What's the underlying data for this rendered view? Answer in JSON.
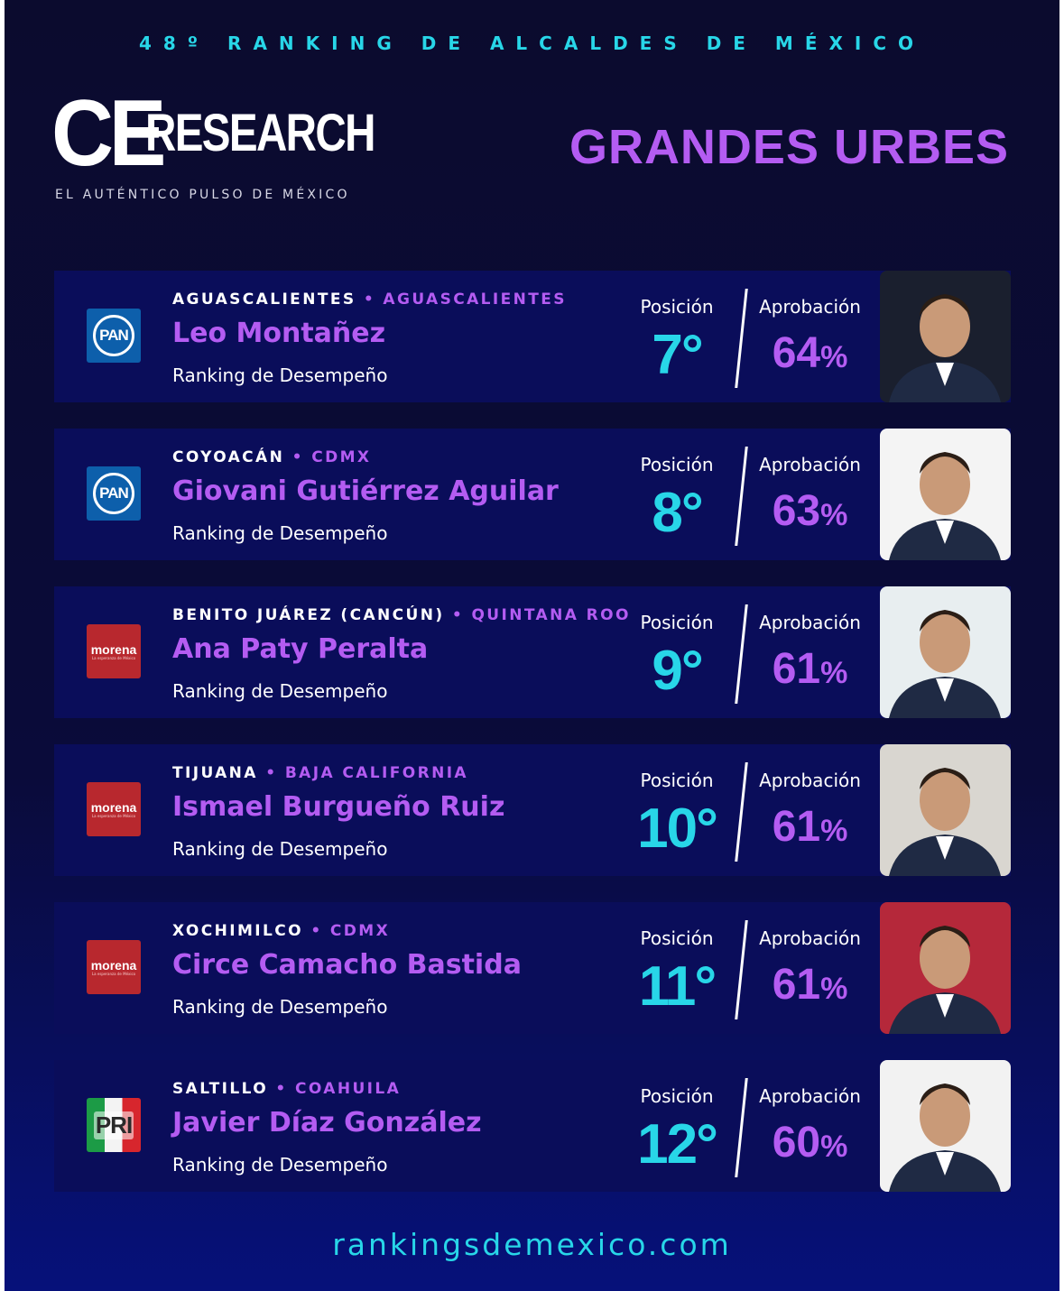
{
  "header": {
    "top_title": "48º RANKING DE ALCALDES DE MÉXICO",
    "logo_ce": "CE",
    "logo_research": "RESEARCH",
    "logo_tagline": "EL AUTÉNTICO PULSO DE MÉXICO",
    "category": "GRANDES URBES"
  },
  "labels": {
    "position": "Posición",
    "approval": "Aprobación",
    "ranking": "Ranking de Desempeño"
  },
  "mayors": [
    {
      "city": "AGUASCALIENTES",
      "state": "AGUASCALIENTES",
      "name": "Leo Montañez",
      "party": "PAN",
      "position": "7°",
      "approval": "64",
      "photo_bg": "#1a1f2e"
    },
    {
      "city": "COYOACÁN",
      "state": "CDMX",
      "name": "Giovani Gutiérrez Aguilar",
      "party": "PAN",
      "position": "8°",
      "approval": "63",
      "photo_bg": "#f4f4f4"
    },
    {
      "city": "BENITO JUÁREZ (CANCÚN)",
      "state": "QUINTANA ROO",
      "name": "Ana Paty Peralta",
      "party": "morena",
      "position": "9°",
      "approval": "61",
      "photo_bg": "#e8eef0"
    },
    {
      "city": "TIJUANA",
      "state": "BAJA CALIFORNIA",
      "name": "Ismael Burgueño Ruiz",
      "party": "morena",
      "position": "10°",
      "approval": "61",
      "photo_bg": "#d9d6d0"
    },
    {
      "city": "XOCHIMILCO",
      "state": "CDMX",
      "name": "Circe Camacho Bastida",
      "party": "morena",
      "position": "11°",
      "approval": "61",
      "photo_bg": "#b5283a"
    },
    {
      "city": "SALTILLO",
      "state": "COAHUILA",
      "name": "Javier Díaz González",
      "party": "PRI",
      "position": "12°",
      "approval": "60",
      "photo_bg": "#f2f2f2"
    }
  ],
  "party_marks": {
    "pan": "PAN",
    "morena": "morena",
    "morena_sub": "La esperanza de México",
    "pri": "PRI"
  },
  "percent_sign": "%",
  "bullet": "•",
  "footer": {
    "url": "rankingsdemexico.com"
  }
}
